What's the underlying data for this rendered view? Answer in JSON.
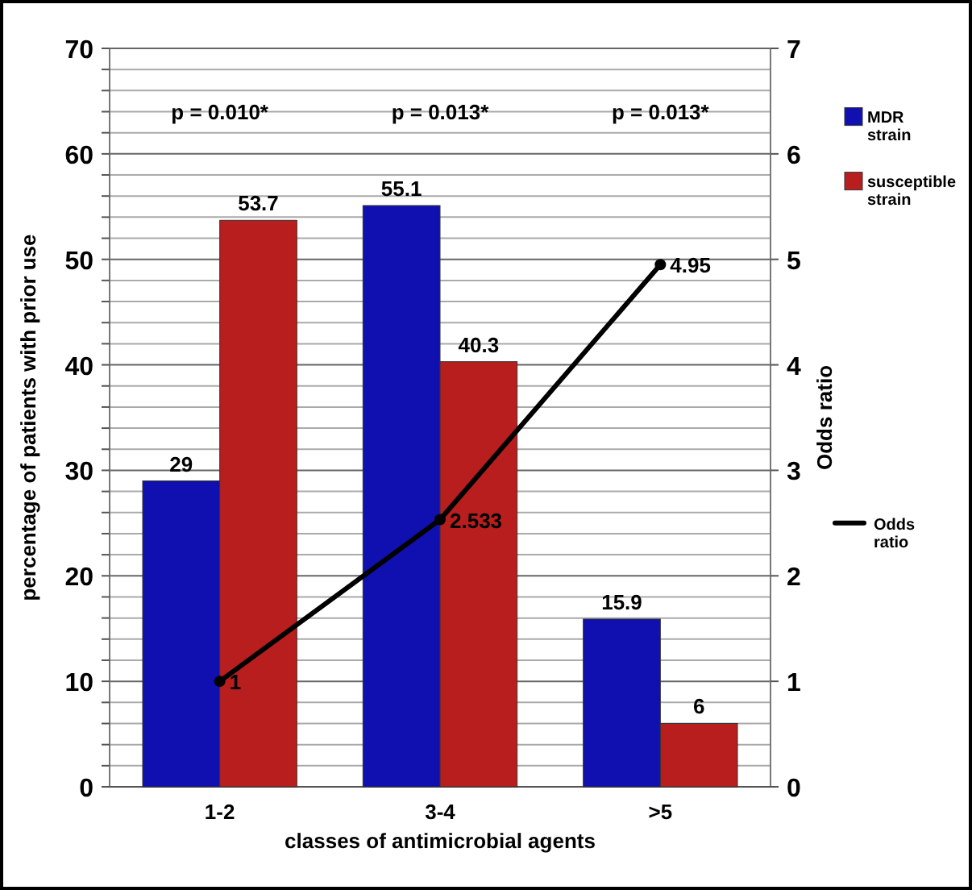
{
  "chart_data": {
    "type": "bar",
    "xlabel": "classes of antimicrobial agents",
    "ylabel": "percentage of patients with prior use",
    "y2label": "Odds ratio",
    "categories": [
      "1-2",
      "3-4",
      ">5"
    ],
    "series": [
      {
        "name": "MDR strain",
        "color": "#1010b0",
        "values": [
          29,
          55.1,
          15.9
        ]
      },
      {
        "name": "susceptible strain",
        "color": "#b81e1e",
        "values": [
          53.7,
          40.3,
          6
        ]
      },
      {
        "name": "Odds ratio",
        "type": "line",
        "axis": "y2",
        "color": "#000000",
        "values": [
          1,
          2.533,
          4.95
        ]
      }
    ],
    "ylim": [
      0,
      70
    ],
    "yticks": [
      0,
      {
        "value": 2,
        "label": null
      },
      {
        "value": 4,
        "label": null
      },
      {
        "value": 6,
        "label": null
      },
      {
        "value": 8,
        "label": null
      },
      10,
      {
        "value": 12,
        "label": null
      },
      {
        "value": 14,
        "label": null
      },
      {
        "value": 16,
        "label": null
      },
      {
        "value": 18,
        "label": null
      },
      20,
      {
        "value": 22,
        "label": null
      },
      {
        "value": 24,
        "label": null
      },
      {
        "value": 26,
        "label": null
      },
      {
        "value": 28,
        "label": null
      },
      30,
      {
        "value": 32,
        "label": null
      },
      {
        "value": 34,
        "label": null
      },
      {
        "value": 36,
        "label": null
      },
      {
        "value": 38,
        "label": null
      },
      40,
      {
        "value": 42,
        "label": null
      },
      {
        "value": 44,
        "label": null
      },
      {
        "value": 46,
        "label": null
      },
      {
        "value": 48,
        "label": null
      },
      50,
      {
        "value": 52,
        "label": null
      },
      {
        "value": 54,
        "label": null
      },
      {
        "value": 56,
        "label": null
      },
      {
        "value": 58,
        "label": null
      },
      60,
      {
        "value": 62,
        "label": null
      },
      {
        "value": 64,
        "label": null
      },
      {
        "value": 66,
        "label": null
      },
      {
        "value": 68,
        "label": null
      },
      70
    ],
    "y2lim": [
      0,
      7
    ],
    "y2ticks": [
      0,
      1,
      2,
      3,
      4,
      5,
      6,
      7
    ],
    "annotations": [
      "p = 0.010*",
      "p = 0.013*",
      "p = 0.013*"
    ],
    "data_labels": true,
    "grid": "y",
    "legend": "right",
    "marker": "circle",
    "line_style": "solid"
  }
}
